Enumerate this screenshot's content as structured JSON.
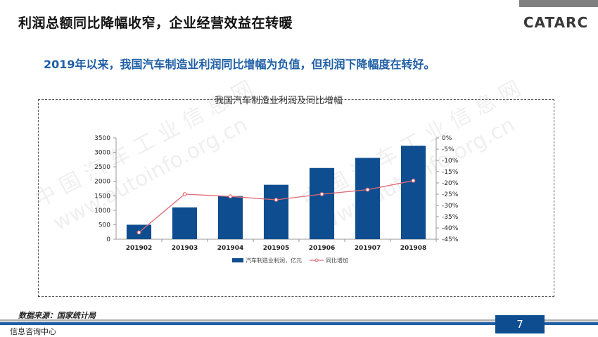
{
  "header": {
    "title": "利润总额同比降幅收窄，企业经营效益在转暖",
    "logo_text": "CATARC"
  },
  "subtitle": "2019年以来，我国汽车制造业利润同比增幅为负值，但利润下降幅度在转好。",
  "watermark": {
    "cn": "中 国 汽 车 工 业 信 息 网",
    "url": "www.autoinfo.org.cn"
  },
  "colors": {
    "bar": "#0e4d8f",
    "line": "#e06a73",
    "accent": "#1f5fa6"
  },
  "chart_data": {
    "type": "bar",
    "title": "我国汽车制造业利润及同比增幅",
    "categories": [
      "201902",
      "201903",
      "201904",
      "201905",
      "201906",
      "201907",
      "201908"
    ],
    "series": [
      {
        "name": "汽车制造业利润，亿元",
        "type": "bar",
        "axis": "left",
        "values": [
          500,
          1100,
          1490,
          1880,
          2460,
          2810,
          3230
        ]
      },
      {
        "name": "同比增加",
        "type": "line",
        "axis": "right",
        "values": [
          -42.0,
          -25.0,
          -26.0,
          -27.5,
          -25.0,
          -23.0,
          -19.0
        ]
      }
    ],
    "y_left": {
      "min": 0,
      "max": 3500,
      "ticks": [
        "0",
        "500",
        "1000",
        "1500",
        "2000",
        "2500",
        "3000",
        "3500"
      ]
    },
    "y_right": {
      "min": -45,
      "max": 0,
      "ticks": [
        "0%",
        "-5%",
        "-10%",
        "-15%",
        "-20%",
        "-25%",
        "-30%",
        "-35%",
        "-40%",
        "-45%"
      ]
    },
    "legend_position": "bottom",
    "grid": false
  },
  "footer": {
    "source": "数据来源：国家统计局",
    "label": "信息咨询中心",
    "page": "7"
  }
}
